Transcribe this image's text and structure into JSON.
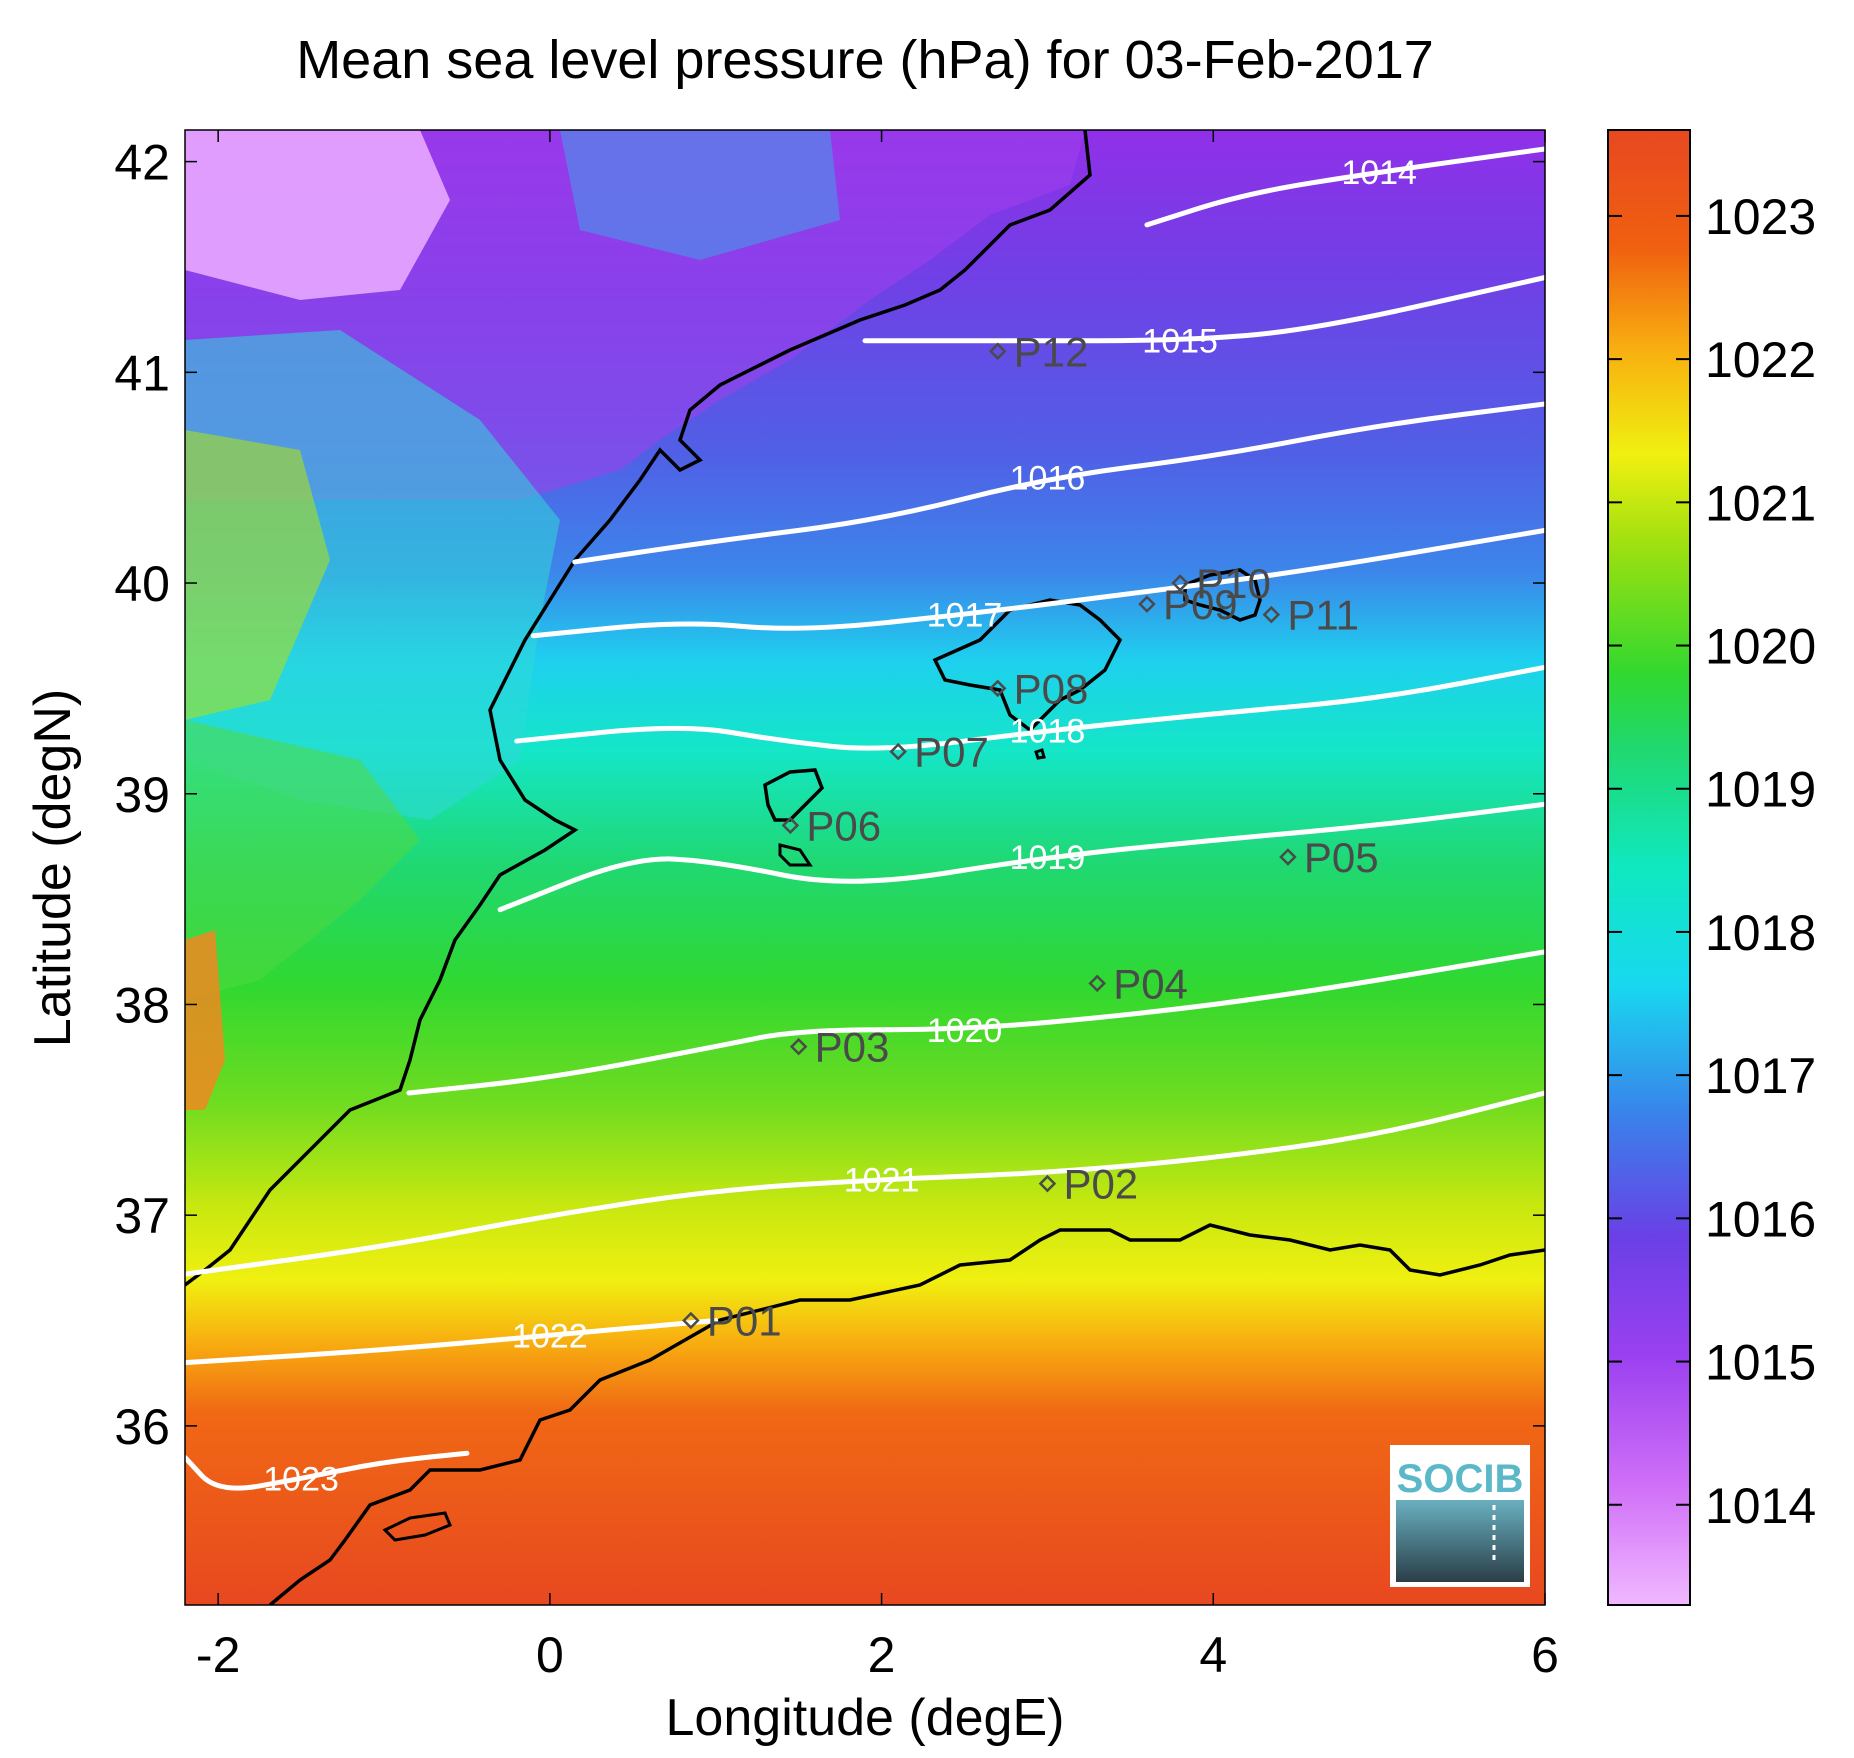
{
  "title": "Mean sea level pressure (hPa) for 03-Feb-2017",
  "logo_text": "SOCIB",
  "chart_data": {
    "type": "heatmap",
    "title": "Mean sea level pressure (hPa) for 03-Feb-2017",
    "xlabel": "Longitude (degE)",
    "ylabel": "Latitude (degN)",
    "xlim": [
      -2.2,
      6.0
    ],
    "ylim": [
      35.15,
      42.15
    ],
    "xticks": [
      -2,
      0,
      2,
      4,
      6
    ],
    "xtick_labels": [
      "-2",
      "0",
      "2",
      "4",
      "6"
    ],
    "yticks": [
      36,
      37,
      38,
      39,
      40,
      41,
      42
    ],
    "ytick_labels": [
      "36",
      "37",
      "38",
      "39",
      "40",
      "41",
      "42"
    ],
    "colorbar": {
      "range": [
        1013.3,
        1023.6
      ],
      "ticks": [
        1014,
        1015,
        1016,
        1017,
        1018,
        1019,
        1020,
        1021,
        1022,
        1023
      ],
      "tick_labels": [
        "1014",
        "1015",
        "1016",
        "1017",
        "1018",
        "1019",
        "1020",
        "1021",
        "1022",
        "1023"
      ],
      "colors": [
        "#f0b8ff",
        "#c850f0",
        "#7040e8",
        "#3a7ee8",
        "#10e8e0",
        "#20d870",
        "#30d830",
        "#a0e010",
        "#f0f010",
        "#f8b010",
        "#f06010",
        "#e84820"
      ]
    },
    "contours": [
      {
        "level": 1014,
        "label": "1014",
        "lon": [
          3.6,
          4.2,
          5.0,
          6.0
        ],
        "lat": [
          41.7,
          41.85,
          41.95,
          42.06
        ]
      },
      {
        "level": 1015,
        "label": "1015",
        "lon": [
          1.9,
          2.8,
          3.8,
          4.6,
          6.0
        ],
        "lat": [
          41.15,
          41.15,
          41.15,
          41.2,
          41.45
        ]
      },
      {
        "level": 1016,
        "label": "1016",
        "lon": [
          0.15,
          1.0,
          2.0,
          3.0,
          4.0,
          5.0,
          6.0
        ],
        "lat": [
          40.1,
          40.2,
          40.3,
          40.5,
          40.6,
          40.75,
          40.85
        ]
      },
      {
        "level": 1017,
        "label": "1017",
        "lon": [
          -0.1,
          0.8,
          1.5,
          2.5,
          3.5,
          4.5,
          6.0
        ],
        "lat": [
          39.75,
          39.82,
          39.77,
          39.85,
          39.95,
          40.05,
          40.25
        ]
      },
      {
        "level": 1018,
        "label": "1018",
        "lon": [
          -0.2,
          0.8,
          1.4,
          2.0,
          3.0,
          4.0,
          5.0,
          6.0
        ],
        "lat": [
          39.25,
          39.33,
          39.25,
          39.2,
          39.3,
          39.38,
          39.45,
          39.6
        ]
      },
      {
        "level": 1019,
        "label": "1019",
        "lon": [
          -0.3,
          0.5,
          1.0,
          1.8,
          3.0,
          4.0,
          5.0,
          6.0
        ],
        "lat": [
          38.45,
          38.7,
          38.68,
          38.55,
          38.7,
          38.78,
          38.85,
          38.95
        ]
      },
      {
        "level": 1020,
        "label": "1020",
        "lon": [
          -0.85,
          0.0,
          1.0,
          1.5,
          2.5,
          3.5,
          4.5,
          6.0
        ],
        "lat": [
          37.58,
          37.65,
          37.8,
          37.88,
          37.88,
          37.95,
          38.05,
          38.25
        ]
      },
      {
        "level": 1021,
        "label": "1021",
        "lon": [
          -2.2,
          -1.0,
          0.0,
          1.0,
          2.0,
          3.0,
          4.0,
          5.0,
          6.0
        ],
        "lat": [
          36.72,
          36.85,
          37.0,
          37.12,
          37.17,
          37.2,
          37.27,
          37.38,
          37.58
        ]
      },
      {
        "level": 1022,
        "label": "1022",
        "lon": [
          -2.2,
          -1.0,
          0.0,
          1.0
        ],
        "lat": [
          36.3,
          36.36,
          36.43,
          36.5
        ]
      },
      {
        "level": 1023,
        "label": "1023",
        "lon": [
          -2.2,
          -2.0,
          -1.5,
          -1.0,
          -0.5
        ],
        "lat": [
          35.85,
          35.68,
          35.75,
          35.83,
          35.87
        ]
      }
    ],
    "points": [
      {
        "name": "P01",
        "lon": 0.85,
        "lat": 36.5
      },
      {
        "name": "P02",
        "lon": 3.0,
        "lat": 37.15
      },
      {
        "name": "P03",
        "lon": 1.5,
        "lat": 37.8
      },
      {
        "name": "P04",
        "lon": 3.3,
        "lat": 38.1
      },
      {
        "name": "P05",
        "lon": 4.45,
        "lat": 38.7
      },
      {
        "name": "P06",
        "lon": 1.45,
        "lat": 38.85
      },
      {
        "name": "P07",
        "lon": 2.1,
        "lat": 39.2
      },
      {
        "name": "P08",
        "lon": 2.7,
        "lat": 39.5
      },
      {
        "name": "P09",
        "lon": 3.6,
        "lat": 39.9
      },
      {
        "name": "P10",
        "lon": 3.8,
        "lat": 40.0
      },
      {
        "name": "P11",
        "lon": 4.35,
        "lat": 39.85
      },
      {
        "name": "P12",
        "lon": 2.7,
        "lat": 41.1
      }
    ]
  }
}
